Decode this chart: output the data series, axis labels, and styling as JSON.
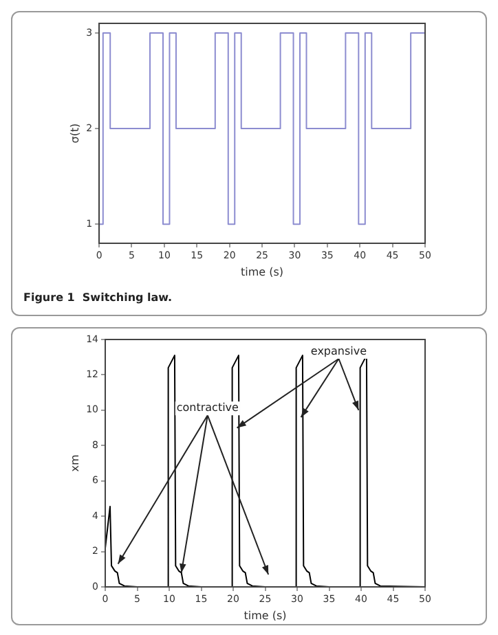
{
  "chart_data": [
    {
      "type": "step",
      "xlabel": "time (s)",
      "ylabel": "σ(t)",
      "xlim": [
        0,
        50
      ],
      "ylim": [
        0.8,
        3.1
      ],
      "xticks": [
        0,
        5,
        10,
        15,
        20,
        25,
        30,
        35,
        40,
        45,
        50
      ],
      "yticks": [
        1,
        2,
        3
      ],
      "grid": false,
      "annotations": [
        "Figure 1  Switching law."
      ],
      "series": [
        {
          "color": "#8c8cd0",
          "x": [
            0,
            0.6,
            1.7,
            7.8,
            9.8,
            10.8,
            11.8,
            17.8,
            19.8,
            20.8,
            21.8,
            27.8,
            29.8,
            30.8,
            31.8,
            37.8,
            39.8,
            40.8,
            41.8,
            47.8,
            50
          ],
          "values": [
            1,
            3,
            2,
            3,
            1,
            3,
            2,
            3,
            1,
            3,
            2,
            3,
            1,
            3,
            2,
            3,
            1,
            3,
            2,
            3,
            3
          ]
        }
      ]
    },
    {
      "type": "line",
      "xlabel": "time (s)",
      "ylabel": "xm",
      "xlim": [
        0,
        50
      ],
      "ylim": [
        0,
        14
      ],
      "xticks": [
        0,
        5,
        10,
        15,
        20,
        25,
        30,
        35,
        40,
        45,
        50
      ],
      "yticks": [
        0,
        2,
        4,
        6,
        8,
        10,
        12,
        14
      ],
      "grid": false,
      "annotations": [
        {
          "text": "contractive",
          "x": 11.9,
          "y": 0.8
        },
        {
          "text": "expansive",
          "x": 30.6,
          "y": 9.6
        }
      ],
      "series": [
        {
          "color": "#000000",
          "x": [
            0,
            0.75,
            0.97,
            1.5,
            1.9,
            2.2,
            3,
            5,
            9.8,
            9.85,
            10.85,
            11,
            11.5,
            11.9,
            12.2,
            13,
            15,
            19.8,
            19.85,
            20.85,
            21,
            21.5,
            21.9,
            22.2,
            23,
            25,
            29.8,
            29.85,
            30.85,
            31,
            31.5,
            31.9,
            32.2,
            33,
            35,
            39.8,
            39.85,
            40.85,
            41,
            41.5,
            41.9,
            42.2,
            43,
            50
          ],
          "values": [
            2.2,
            4.55,
            1.2,
            0.9,
            0.8,
            0.2,
            0.05,
            0,
            0,
            12.4,
            13.1,
            1.2,
            0.9,
            0.8,
            0.2,
            0.05,
            0,
            0,
            12.4,
            13.1,
            1.2,
            0.9,
            0.8,
            0.2,
            0.05,
            0,
            0,
            12.4,
            13.1,
            1.2,
            0.9,
            0.8,
            0.2,
            0.05,
            0,
            0,
            12.4,
            13.1,
            1.2,
            0.9,
            0.8,
            0.2,
            0.05,
            0
          ]
        }
      ]
    }
  ]
}
